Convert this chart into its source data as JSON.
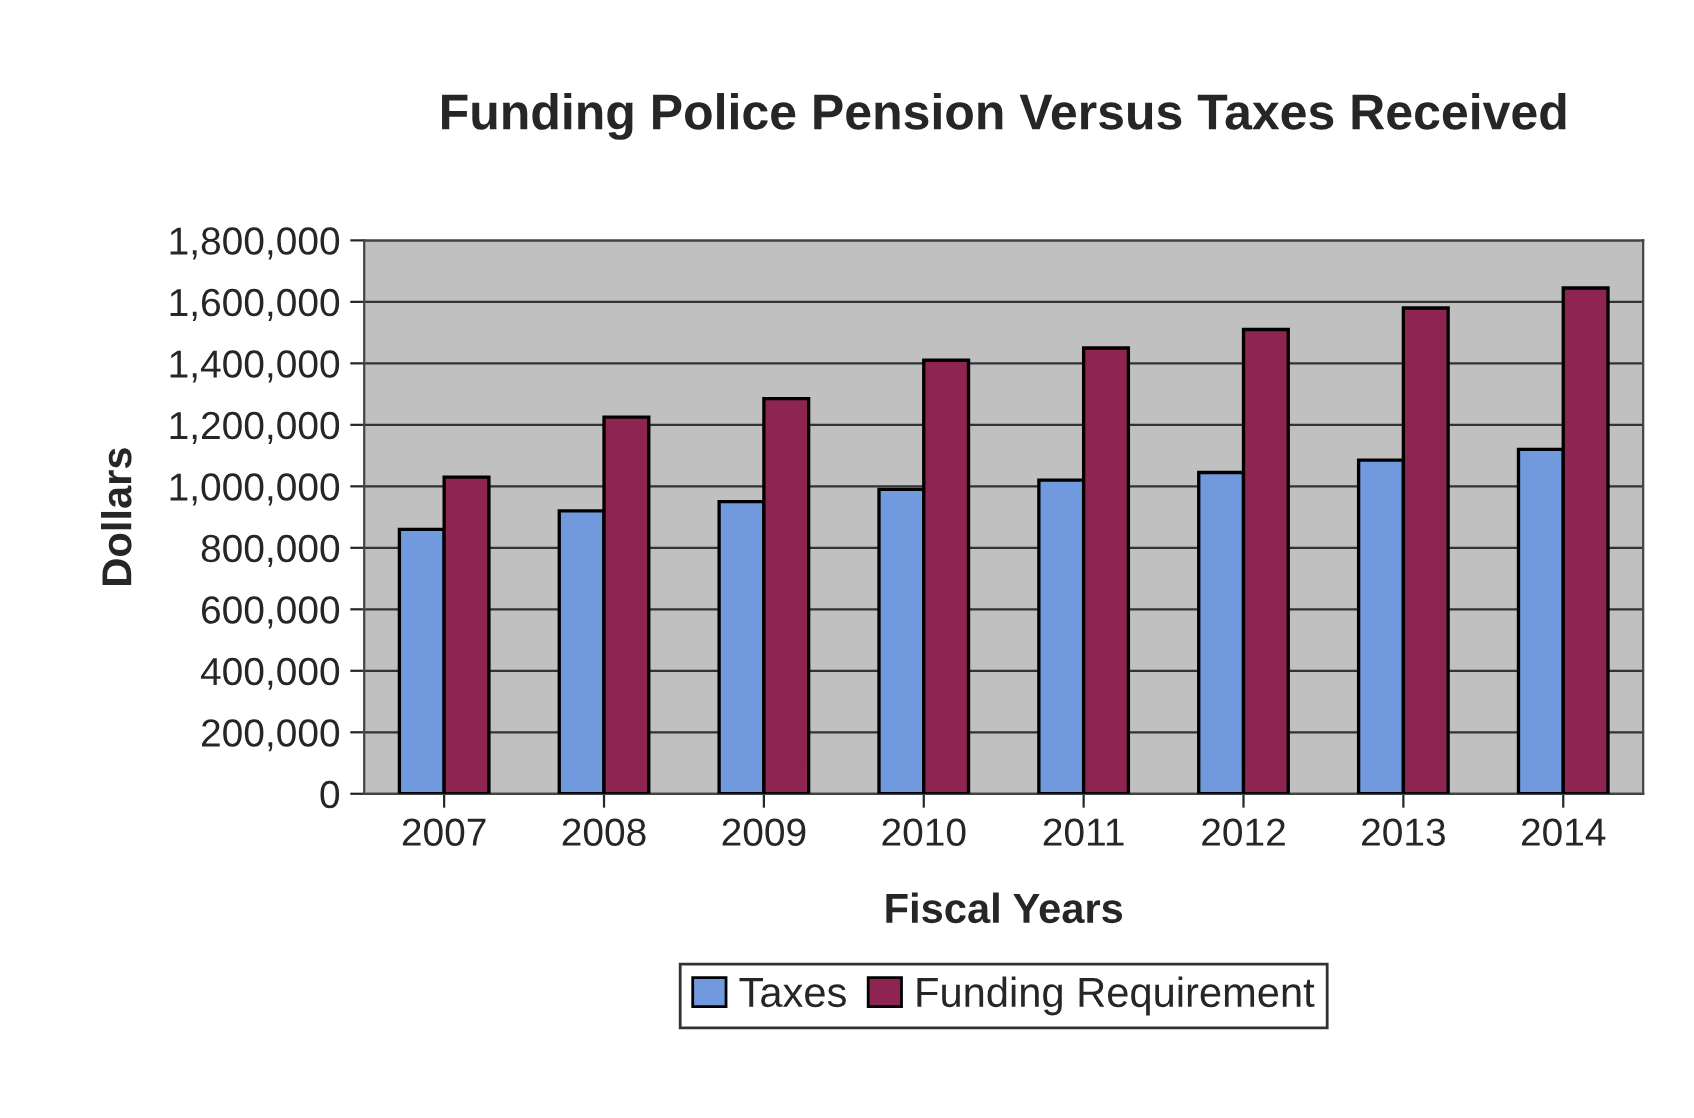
{
  "chart_data": {
    "type": "bar",
    "title": "Funding Police Pension Versus Taxes Received",
    "xlabel": "Fiscal Years",
    "ylabel": "Dollars",
    "categories": [
      "2007",
      "2008",
      "2009",
      "2010",
      "2011",
      "2012",
      "2013",
      "2014"
    ],
    "series": [
      {
        "name": "Taxes",
        "color": "#7199dd",
        "values": [
          860000,
          920000,
          950000,
          990000,
          1020000,
          1045000,
          1085000,
          1120000
        ]
      },
      {
        "name": "Funding Requirement",
        "color": "#8e2452",
        "values": [
          1030000,
          1225000,
          1285000,
          1410000,
          1450000,
          1510000,
          1580000,
          1645000
        ]
      }
    ],
    "ylim": [
      0,
      1800000
    ],
    "yticks": [
      {
        "value": 0,
        "label": "0"
      },
      {
        "value": 200000,
        "label": "200,000"
      },
      {
        "value": 400000,
        "label": "400,000"
      },
      {
        "value": 600000,
        "label": "600,000"
      },
      {
        "value": 800000,
        "label": "800,000"
      },
      {
        "value": 1000000,
        "label": "1,000,000"
      },
      {
        "value": 1200000,
        "label": "1,200,000"
      },
      {
        "value": 1400000,
        "label": "1,400,000"
      },
      {
        "value": 1600000,
        "label": "1,600,000"
      },
      {
        "value": 1800000,
        "label": "1,800,000"
      }
    ],
    "grid": "y",
    "legend": "bottom"
  }
}
